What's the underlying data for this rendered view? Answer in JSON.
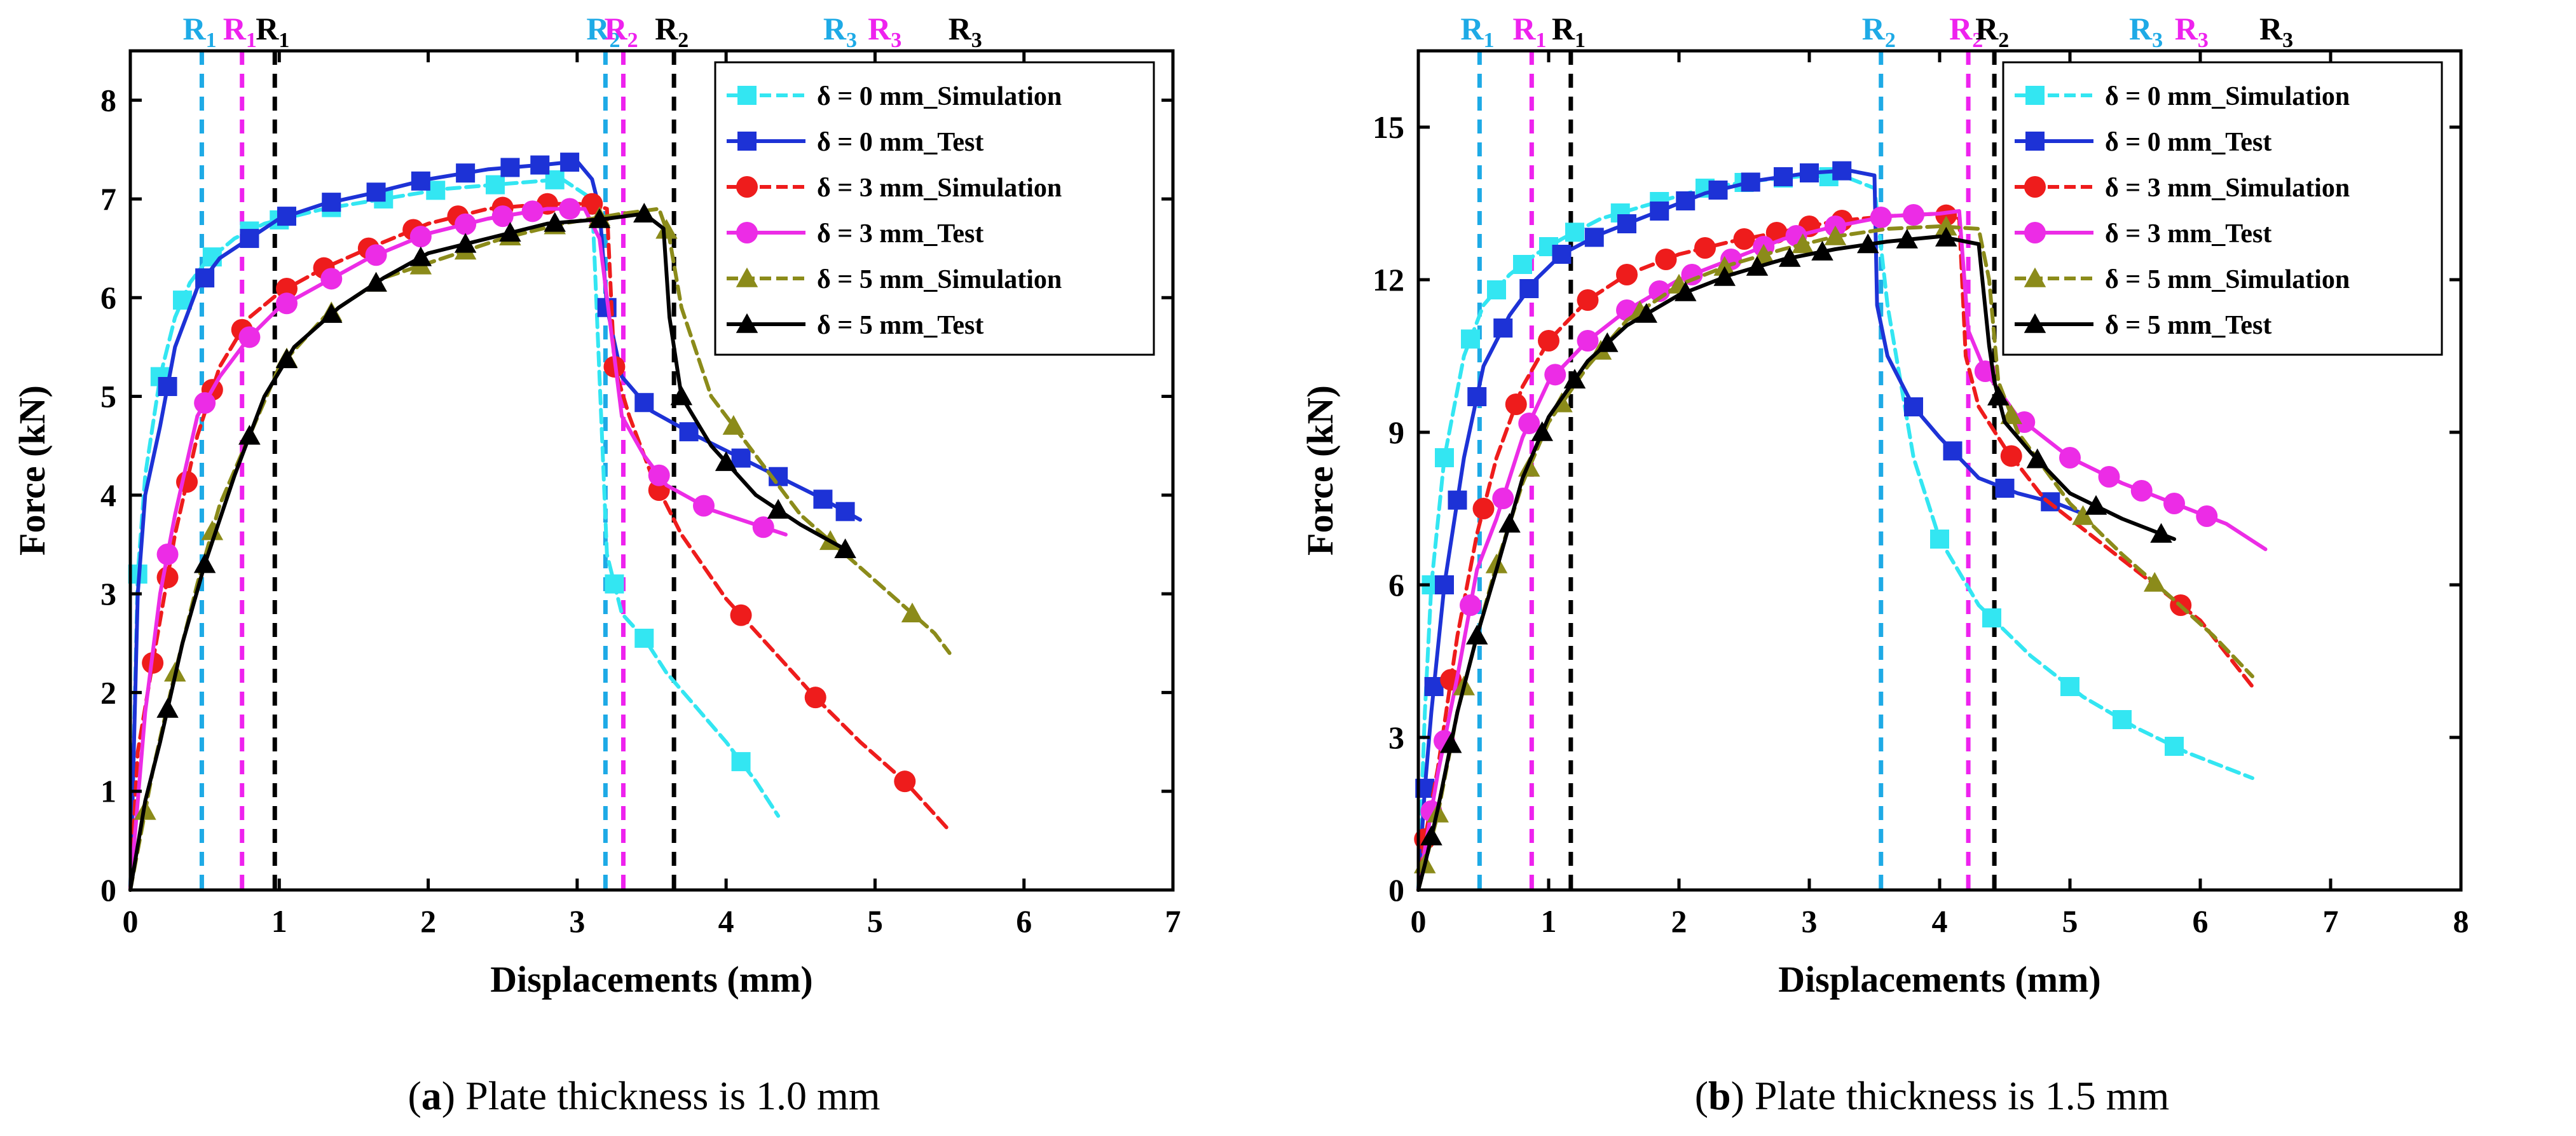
{
  "chart_data": [
    {
      "type": "line",
      "panel": "a",
      "caption_letter": "a",
      "caption_rest": ") Plate thickness is 1.0 mm",
      "xlabel": "Displacements (mm)",
      "ylabel": "Force (kN)",
      "xlim": [
        0,
        7
      ],
      "ylim": [
        0,
        8.5
      ],
      "xticks": [
        0,
        1,
        2,
        3,
        4,
        5,
        6,
        7
      ],
      "yticks": [
        0,
        1,
        2,
        3,
        4,
        5,
        6,
        7,
        8
      ],
      "legend_position": "top-right",
      "region_lines": [
        {
          "label": "R",
          "sub": "1",
          "x": 0.48,
          "color": "#1eaae6"
        },
        {
          "label": "R",
          "sub": "1",
          "x": 0.75,
          "color": "#ee22ee"
        },
        {
          "label": "R",
          "sub": "1",
          "x": 0.97,
          "color": "#000000"
        },
        {
          "label": "R",
          "sub": "2",
          "x": 3.19,
          "color": "#1eaae6"
        },
        {
          "label": "R",
          "sub": "2",
          "x": 3.31,
          "color": "#ee22ee"
        },
        {
          "label": "R",
          "sub": "2",
          "x": 3.65,
          "color": "#000000"
        }
      ],
      "region_labels_extra": [
        {
          "label": "R",
          "sub": "3",
          "x": 4.78,
          "color": "#1eaae6"
        },
        {
          "label": "R",
          "sub": "3",
          "x": 5.08,
          "color": "#ee22ee"
        },
        {
          "label": "R",
          "sub": "3",
          "x": 5.62,
          "color": "#000000"
        }
      ],
      "series": [
        {
          "name": "δ = 0 mm_Simulation",
          "color": "#33e6f2",
          "marker": "square",
          "dash": true,
          "x": [
            0,
            0.05,
            0.1,
            0.2,
            0.3,
            0.4,
            0.5,
            0.7,
            0.9,
            1.3,
            1.7,
            2.1,
            2.5,
            2.9,
            3.1,
            3.2,
            3.3,
            3.45,
            3.6,
            3.8,
            4.0,
            4.2,
            4.35
          ],
          "y": [
            0,
            3.2,
            4.2,
            5.2,
            5.8,
            6.15,
            6.35,
            6.6,
            6.75,
            6.9,
            7.0,
            7.1,
            7.15,
            7.2,
            7.0,
            3.4,
            2.8,
            2.55,
            2.2,
            1.85,
            1.5,
            1.1,
            0.75
          ],
          "marker_x": [
            0.05,
            0.2,
            0.35,
            0.55,
            0.8,
            1.0,
            1.35,
            1.7,
            2.05,
            2.45,
            2.85,
            3.25,
            3.45,
            4.1
          ]
        },
        {
          "name": "δ = 0 mm_Test",
          "color": "#1d32d6",
          "marker": "square",
          "dash": false,
          "x": [
            0,
            0.05,
            0.1,
            0.2,
            0.3,
            0.45,
            0.6,
            0.8,
            1.0,
            1.3,
            1.6,
            2.0,
            2.4,
            2.8,
            3.0,
            3.1,
            3.15,
            3.2,
            3.3,
            3.5,
            3.8,
            4.2,
            4.6,
            4.9
          ],
          "y": [
            0,
            3.0,
            4.0,
            4.7,
            5.5,
            6.1,
            6.4,
            6.6,
            6.8,
            6.95,
            7.05,
            7.2,
            7.3,
            7.35,
            7.38,
            7.2,
            6.9,
            5.9,
            5.2,
            4.85,
            4.6,
            4.3,
            4.0,
            3.75
          ],
          "marker_x": [
            0.25,
            0.5,
            0.8,
            1.05,
            1.35,
            1.65,
            1.95,
            2.25,
            2.55,
            2.75,
            2.95,
            3.2,
            3.45,
            3.75,
            4.1,
            4.35,
            4.65,
            4.8
          ]
        },
        {
          "name": "δ = 3 mm_Simulation",
          "color": "#ee1c1c",
          "marker": "circle",
          "dash": true,
          "x": [
            0,
            0.05,
            0.15,
            0.3,
            0.45,
            0.6,
            0.8,
            1.0,
            1.3,
            1.6,
            2.0,
            2.4,
            2.8,
            3.1,
            3.2,
            3.25,
            3.35,
            3.5,
            3.7,
            4.0,
            4.3,
            4.6,
            4.9,
            5.2,
            5.5
          ],
          "y": [
            0,
            1.4,
            2.3,
            3.6,
            4.6,
            5.3,
            5.8,
            6.05,
            6.3,
            6.5,
            6.75,
            6.9,
            6.95,
            6.95,
            6.9,
            5.3,
            4.8,
            4.2,
            3.6,
            2.95,
            2.45,
            1.95,
            1.5,
            1.1,
            0.6
          ],
          "marker_x": [
            0.15,
            0.25,
            0.38,
            0.55,
            0.75,
            1.05,
            1.3,
            1.6,
            1.9,
            2.2,
            2.5,
            2.8,
            3.1,
            3.25,
            3.55,
            4.1,
            4.6,
            5.2
          ]
        },
        {
          "name": "δ = 3 mm_Test",
          "color": "#ec2ce6",
          "marker": "circle",
          "dash": false,
          "x": [
            0,
            0.1,
            0.2,
            0.3,
            0.45,
            0.6,
            0.8,
            1.0,
            1.3,
            1.6,
            2.0,
            2.4,
            2.8,
            3.05,
            3.15,
            3.3,
            3.45,
            3.6,
            3.9,
            4.2,
            4.4
          ],
          "y": [
            0,
            1.8,
            3.0,
            3.8,
            4.8,
            5.2,
            5.6,
            5.9,
            6.15,
            6.4,
            6.65,
            6.8,
            6.9,
            6.9,
            6.6,
            4.8,
            4.4,
            4.1,
            3.85,
            3.7,
            3.6
          ],
          "marker_x": [
            0.25,
            0.5,
            0.8,
            1.05,
            1.35,
            1.65,
            1.95,
            2.25,
            2.5,
            2.7,
            2.95,
            3.55,
            3.85,
            4.25
          ]
        },
        {
          "name": "δ = 5 mm_Simulation",
          "color": "#8b8b1a",
          "marker": "triangle",
          "dash": true,
          "x": [
            0,
            0.05,
            0.15,
            0.3,
            0.45,
            0.6,
            0.8,
            1.0,
            1.3,
            1.7,
            2.1,
            2.5,
            2.9,
            3.3,
            3.55,
            3.62,
            3.7,
            3.9,
            4.2,
            4.5,
            4.8,
            5.1,
            5.4,
            5.5
          ],
          "y": [
            0,
            0.4,
            1.2,
            2.2,
            3.1,
            3.9,
            4.6,
            5.3,
            5.8,
            6.2,
            6.4,
            6.6,
            6.75,
            6.85,
            6.9,
            6.6,
            5.9,
            5.0,
            4.4,
            3.8,
            3.4,
            3.0,
            2.6,
            2.4
          ],
          "marker_x": [
            0.1,
            0.3,
            0.55,
            0.8,
            1.05,
            1.35,
            1.65,
            1.95,
            2.25,
            2.55,
            2.85,
            3.15,
            3.6,
            4.05,
            4.7,
            5.25
          ]
        },
        {
          "name": "δ = 5 mm_Test",
          "color": "#000000",
          "marker": "triangle",
          "dash": false,
          "x": [
            0,
            0.1,
            0.2,
            0.35,
            0.5,
            0.7,
            0.9,
            1.1,
            1.4,
            1.7,
            2.0,
            2.4,
            2.8,
            3.2,
            3.45,
            3.58,
            3.62,
            3.7,
            3.9,
            4.2,
            4.5,
            4.8
          ],
          "y": [
            0,
            0.9,
            1.5,
            2.5,
            3.3,
            4.2,
            5.0,
            5.5,
            5.9,
            6.2,
            6.45,
            6.6,
            6.75,
            6.8,
            6.85,
            6.7,
            5.8,
            5.0,
            4.5,
            4.0,
            3.7,
            3.45
          ],
          "marker_x": [
            0.25,
            0.5,
            0.8,
            1.05,
            1.35,
            1.65,
            1.95,
            2.25,
            2.55,
            2.85,
            3.15,
            3.45,
            3.7,
            4.0,
            4.35,
            4.8
          ]
        }
      ]
    },
    {
      "type": "line",
      "panel": "b",
      "caption_letter": "b",
      "caption_rest": ") Plate thickness is 1.5 mm",
      "xlabel": "Displacements (mm)",
      "ylabel": "Force (kN)",
      "xlim": [
        0,
        8
      ],
      "ylim": [
        0,
        16.5
      ],
      "xticks": [
        0,
        1,
        2,
        3,
        4,
        5,
        6,
        7,
        8
      ],
      "yticks": [
        0,
        3,
        6,
        9,
        12,
        15
      ],
      "legend_position": "top-right",
      "region_lines": [
        {
          "label": "R",
          "sub": "1",
          "x": 0.47,
          "color": "#1eaae6"
        },
        {
          "label": "R",
          "sub": "1",
          "x": 0.87,
          "color": "#ee22ee"
        },
        {
          "label": "R",
          "sub": "1",
          "x": 1.17,
          "color": "#000000"
        },
        {
          "label": "R",
          "sub": "2",
          "x": 3.55,
          "color": "#1eaae6"
        },
        {
          "label": "R",
          "sub": "2",
          "x": 4.22,
          "color": "#ee22ee"
        },
        {
          "label": "R",
          "sub": "2",
          "x": 4.42,
          "color": "#000000"
        }
      ],
      "region_labels_extra": [
        {
          "label": "R",
          "sub": "3",
          "x": 5.6,
          "color": "#1eaae6"
        },
        {
          "label": "R",
          "sub": "3",
          "x": 5.95,
          "color": "#ee22ee"
        },
        {
          "label": "R",
          "sub": "3",
          "x": 6.6,
          "color": "#000000"
        }
      ],
      "series": [
        {
          "name": "δ = 0 mm_Simulation",
          "color": "#33e6f2",
          "marker": "square",
          "dash": true,
          "x": [
            0,
            0.05,
            0.1,
            0.2,
            0.35,
            0.5,
            0.7,
            0.9,
            1.1,
            1.4,
            1.8,
            2.2,
            2.6,
            3.0,
            3.3,
            3.5,
            3.6,
            3.8,
            4.0,
            4.3,
            4.7,
            5.1,
            5.5,
            5.9,
            6.2,
            6.4
          ],
          "y": [
            0,
            3.5,
            6.0,
            8.5,
            10.5,
            11.5,
            12.1,
            12.5,
            12.8,
            13.2,
            13.5,
            13.8,
            13.95,
            14.05,
            14.0,
            13.8,
            11.5,
            8.5,
            6.9,
            5.6,
            4.6,
            3.8,
            3.2,
            2.7,
            2.4,
            2.2
          ],
          "marker_x": [
            0.1,
            0.2,
            0.4,
            0.6,
            0.8,
            1.0,
            1.2,
            1.55,
            1.85,
            2.2,
            2.5,
            2.8,
            3.15,
            4.0,
            4.4,
            5.0,
            5.4,
            5.8
          ]
        },
        {
          "name": "δ = 0 mm_Test",
          "color": "#1d32d6",
          "marker": "square",
          "dash": false,
          "x": [
            0,
            0.05,
            0.1,
            0.2,
            0.35,
            0.5,
            0.7,
            0.9,
            1.1,
            1.4,
            1.8,
            2.2,
            2.6,
            3.0,
            3.3,
            3.5,
            3.52,
            3.6,
            3.8,
            4.0,
            4.3,
            4.6,
            4.9,
            5.1
          ],
          "y": [
            0,
            2.0,
            3.5,
            6.0,
            8.5,
            10.3,
            11.3,
            12.0,
            12.5,
            12.9,
            13.3,
            13.7,
            13.95,
            14.1,
            14.15,
            14.05,
            11.5,
            10.5,
            9.5,
            8.9,
            8.1,
            7.8,
            7.6,
            7.4
          ],
          "marker_x": [
            0.05,
            0.12,
            0.2,
            0.3,
            0.45,
            0.65,
            0.85,
            1.1,
            1.35,
            1.6,
            1.85,
            2.05,
            2.3,
            2.55,
            2.8,
            3.0,
            3.25,
            3.8,
            4.1,
            4.5,
            4.85
          ]
        },
        {
          "name": "δ = 3 mm_Simulation",
          "color": "#ee1c1c",
          "marker": "circle",
          "dash": true,
          "x": [
            0,
            0.05,
            0.15,
            0.3,
            0.45,
            0.6,
            0.8,
            1.0,
            1.3,
            1.6,
            2.0,
            2.4,
            2.8,
            3.2,
            3.6,
            4.0,
            4.15,
            4.2,
            4.3,
            4.5,
            4.8,
            5.2,
            5.6,
            6.0,
            6.4
          ],
          "y": [
            0,
            1.0,
            2.4,
            5.0,
            7.0,
            8.5,
            9.9,
            10.8,
            11.6,
            12.1,
            12.5,
            12.75,
            12.95,
            13.15,
            13.25,
            13.3,
            13.2,
            10.5,
            9.5,
            8.7,
            7.7,
            6.9,
            6.1,
            5.3,
            4.0
          ],
          "marker_x": [
            0.05,
            0.25,
            0.5,
            0.75,
            1.0,
            1.3,
            1.6,
            1.9,
            2.2,
            2.5,
            2.75,
            3.0,
            3.25,
            4.05,
            4.55,
            5.85
          ]
        },
        {
          "name": "δ = 3 mm_Test",
          "color": "#ec2ce6",
          "marker": "circle",
          "dash": false,
          "x": [
            0,
            0.05,
            0.15,
            0.3,
            0.45,
            0.6,
            0.8,
            1.0,
            1.3,
            1.6,
            2.0,
            2.4,
            2.8,
            3.2,
            3.6,
            4.0,
            4.15,
            4.22,
            4.35,
            4.6,
            5.0,
            5.4,
            5.8,
            6.2,
            6.5
          ],
          "y": [
            0,
            0.8,
            2.3,
            4.2,
            6.3,
            7.3,
            8.9,
            10.0,
            10.8,
            11.4,
            12.0,
            12.4,
            12.8,
            13.05,
            13.25,
            13.3,
            13.35,
            11.0,
            10.2,
            9.3,
            8.5,
            8.0,
            7.6,
            7.2,
            6.7
          ],
          "marker_x": [
            0.1,
            0.2,
            0.4,
            0.65,
            0.85,
            1.05,
            1.3,
            1.6,
            1.85,
            2.1,
            2.4,
            2.65,
            2.9,
            3.2,
            3.55,
            3.8,
            4.35,
            4.65,
            5.0,
            5.3,
            5.55,
            5.8,
            6.05
          ]
        },
        {
          "name": "δ = 5 mm_Simulation",
          "color": "#8b8b1a",
          "marker": "triangle",
          "dash": true,
          "x": [
            0,
            0.05,
            0.15,
            0.3,
            0.45,
            0.6,
            0.8,
            1.0,
            1.3,
            1.6,
            2.0,
            2.4,
            2.8,
            3.2,
            3.6,
            4.0,
            4.3,
            4.38,
            4.45,
            4.6,
            5.0,
            5.4,
            5.8,
            6.1,
            6.4
          ],
          "y": [
            0,
            0.5,
            1.5,
            3.5,
            5.0,
            6.4,
            8.0,
            9.2,
            10.3,
            11.2,
            11.9,
            12.3,
            12.6,
            12.85,
            13.0,
            13.05,
            13.0,
            12.0,
            10.0,
            9.0,
            7.6,
            6.6,
            5.7,
            5.0,
            4.2
          ],
          "marker_x": [
            0.05,
            0.15,
            0.35,
            0.6,
            0.85,
            1.1,
            1.4,
            1.7,
            2.0,
            2.35,
            2.65,
            2.95,
            3.2,
            4.05,
            4.55,
            5.1,
            5.65
          ]
        },
        {
          "name": "δ = 5 mm_Test",
          "color": "#000000",
          "marker": "triangle",
          "dash": false,
          "x": [
            0,
            0.05,
            0.15,
            0.3,
            0.45,
            0.6,
            0.8,
            1.0,
            1.3,
            1.6,
            2.0,
            2.4,
            2.8,
            3.2,
            3.6,
            4.0,
            4.3,
            4.38,
            4.42,
            4.5,
            4.7,
            5.0,
            5.4,
            5.8
          ],
          "y": [
            0,
            0.5,
            1.6,
            3.5,
            5.0,
            6.3,
            8.1,
            9.3,
            10.4,
            11.1,
            11.7,
            12.1,
            12.4,
            12.6,
            12.75,
            12.85,
            12.7,
            10.7,
            10.0,
            9.2,
            8.6,
            7.8,
            7.3,
            6.9
          ],
          "marker_x": [
            0.1,
            0.25,
            0.45,
            0.7,
            0.95,
            1.2,
            1.45,
            1.75,
            2.05,
            2.35,
            2.6,
            2.85,
            3.1,
            3.45,
            3.75,
            4.05,
            4.45,
            4.75,
            5.2,
            5.7
          ]
        }
      ]
    }
  ]
}
